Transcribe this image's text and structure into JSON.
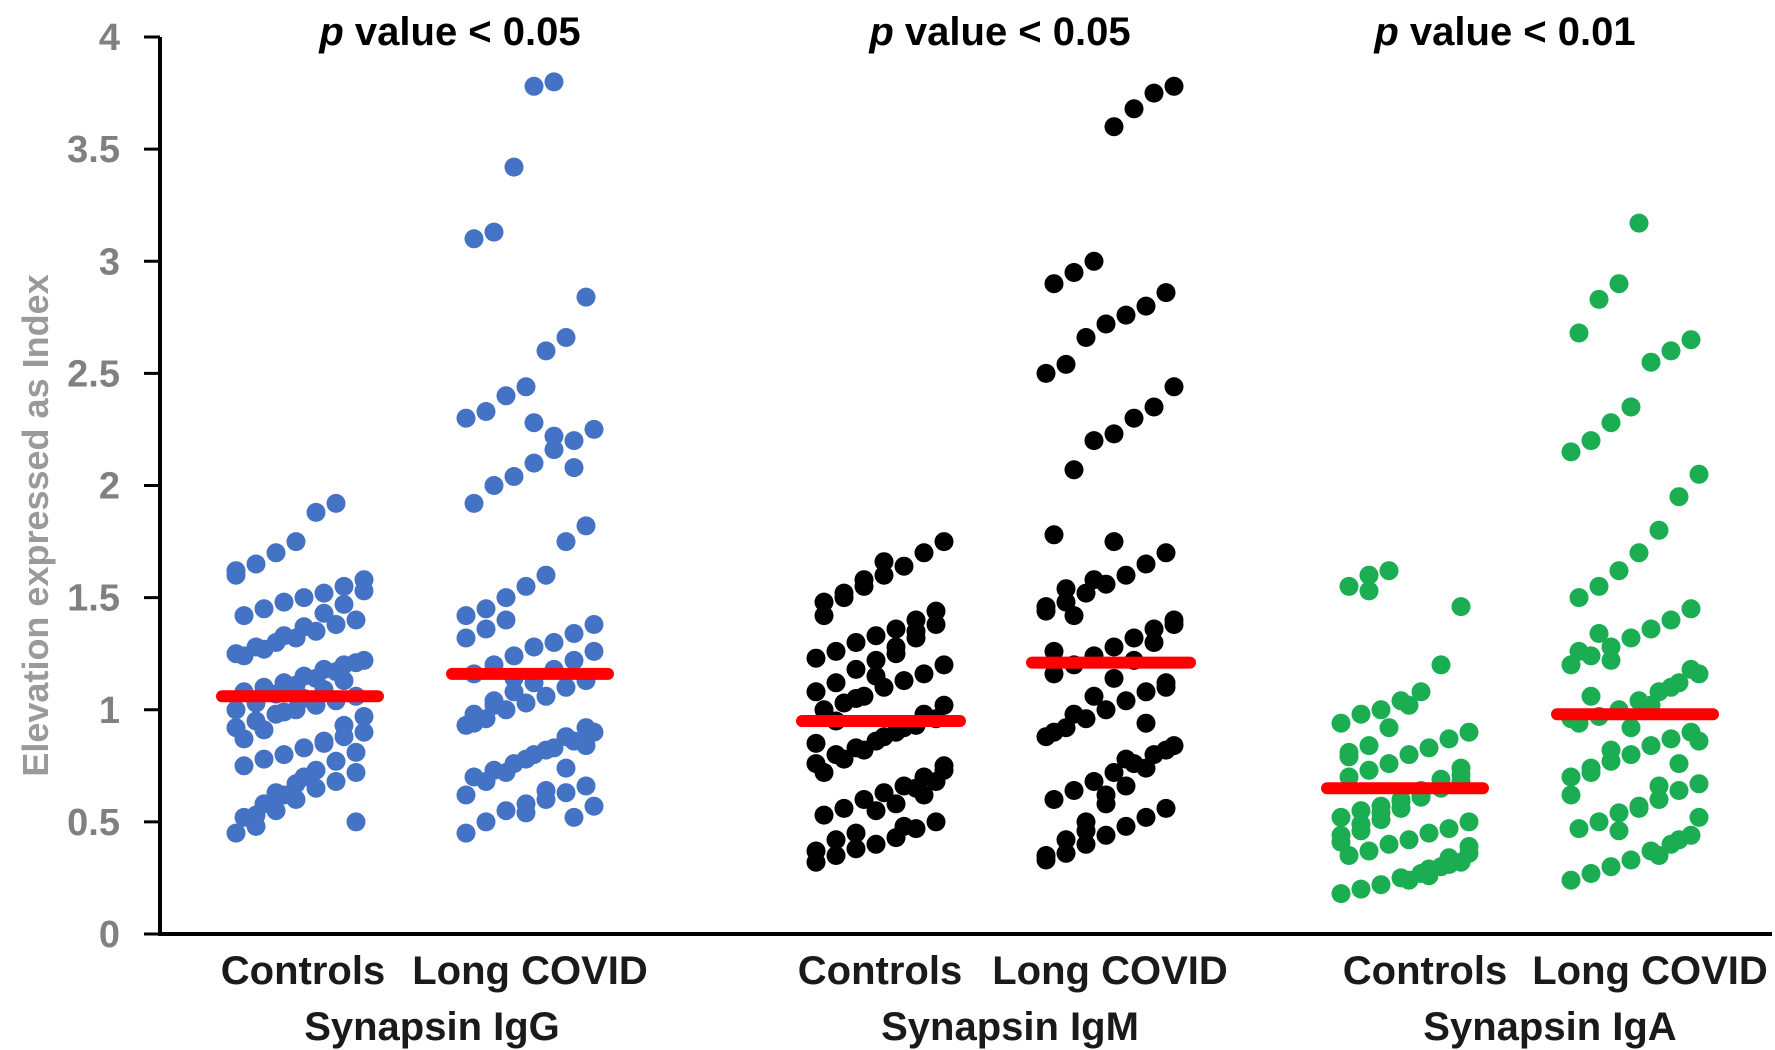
{
  "chart_data": {
    "type": "scatter",
    "subtype": "dot-strip",
    "ylabel": "Elevation expressed as Index",
    "ylim": [
      0,
      4
    ],
    "yticks": [
      0,
      0.5,
      1,
      1.5,
      2,
      2.5,
      3,
      3.5,
      4
    ],
    "ytick_labels": [
      "0",
      "0.5",
      "1",
      "1.5",
      "2",
      "2.5",
      "3",
      "3.5",
      "4"
    ],
    "grid": false,
    "legend": "none",
    "mean_line_color": "#ff0000",
    "groups": [
      {
        "name": "Synapsin IgG",
        "p_italic": "p",
        "p_text": " value < 0.05",
        "color": "#4472c4",
        "categories": [
          {
            "label": "Controls",
            "mean": 1.06,
            "values": [
              0.45,
              0.48,
              0.55,
              0.6,
              0.65,
              0.68,
              0.72,
              0.75,
              0.78,
              0.8,
              0.83,
              0.86,
              0.88,
              0.9,
              0.92,
              0.95,
              0.98,
              1.0,
              1.02,
              1.04,
              1.06,
              1.08,
              1.1,
              1.12,
              1.15,
              1.18,
              1.2,
              1.22,
              1.25,
              1.28,
              1.3,
              1.32,
              1.35,
              1.38,
              1.4,
              1.42,
              1.45,
              1.48,
              1.5,
              1.52,
              1.55,
              1.58,
              1.62,
              1.65,
              1.7,
              1.75,
              1.88,
              1.92,
              0.5,
              0.52,
              0.58,
              0.62,
              0.7,
              0.85,
              0.93,
              0.97,
              1.0,
              1.03,
              1.07,
              1.11,
              1.14,
              1.17,
              1.21,
              1.24,
              1.27,
              1.33,
              1.37,
              1.43,
              1.47,
              1.53,
              1.6,
              0.53,
              0.63,
              0.67,
              0.73,
              0.77,
              0.81,
              0.87,
              0.91,
              0.99,
              1.05,
              1.09,
              1.13
            ]
          },
          {
            "label": "Long COVID",
            "mean": 1.16,
            "values": [
              0.45,
              0.5,
              0.55,
              0.58,
              0.6,
              0.63,
              0.66,
              0.7,
              0.73,
              0.76,
              0.8,
              0.83,
              0.86,
              0.9,
              0.93,
              0.96,
              1.0,
              1.03,
              1.06,
              1.1,
              1.13,
              1.16,
              1.2,
              1.24,
              1.28,
              1.3,
              1.34,
              1.38,
              1.42,
              1.45,
              1.5,
              1.55,
              1.6,
              1.75,
              1.82,
              1.92,
              2.0,
              2.04,
              2.1,
              2.16,
              2.2,
              2.25,
              2.3,
              2.33,
              2.4,
              2.44,
              2.6,
              2.66,
              2.84,
              3.1,
              3.13,
              3.42,
              3.78,
              3.8,
              0.52,
              0.57,
              0.62,
              0.68,
              0.72,
              0.78,
              0.82,
              0.88,
              0.92,
              0.98,
              1.02,
              1.08,
              1.12,
              1.18,
              1.22,
              1.26,
              1.32,
              1.36,
              1.4,
              0.54,
              0.64,
              0.74,
              0.84,
              0.94,
              1.04,
              1.14,
              2.28,
              2.22,
              2.08
            ]
          }
        ]
      },
      {
        "name": "Synapsin IgM",
        "p_italic": "p",
        "p_text": " value < 0.05",
        "color": "#000000",
        "categories": [
          {
            "label": "Controls",
            "mean": 0.95,
            "values": [
              0.32,
              0.35,
              0.38,
              0.4,
              0.43,
              0.47,
              0.5,
              0.53,
              0.56,
              0.6,
              0.63,
              0.66,
              0.7,
              0.73,
              0.76,
              0.8,
              0.83,
              0.86,
              0.9,
              0.93,
              0.96,
              1.0,
              1.03,
              1.06,
              1.1,
              1.13,
              1.16,
              1.2,
              1.23,
              1.26,
              1.3,
              1.33,
              1.36,
              1.4,
              1.44,
              1.48,
              1.52,
              1.55,
              1.6,
              1.64,
              1.7,
              1.75,
              0.37,
              0.42,
              0.45,
              0.55,
              0.58,
              0.65,
              0.68,
              0.72,
              0.78,
              0.82,
              0.88,
              0.92,
              0.98,
              1.02,
              1.08,
              1.12,
              1.18,
              1.22,
              1.28,
              1.32,
              1.38,
              1.42,
              1.5,
              1.58,
              1.66,
              0.48,
              0.62,
              0.75,
              0.85,
              0.95,
              1.05,
              1.15,
              1.25,
              1.35
            ]
          },
          {
            "label": "Long COVID",
            "mean": 1.21,
            "values": [
              0.33,
              0.36,
              0.4,
              0.44,
              0.48,
              0.52,
              0.56,
              0.6,
              0.64,
              0.68,
              0.72,
              0.76,
              0.8,
              0.84,
              0.88,
              0.92,
              0.96,
              1.0,
              1.04,
              1.08,
              1.12,
              1.16,
              1.2,
              1.24,
              1.28,
              1.32,
              1.36,
              1.4,
              1.44,
              1.48,
              1.52,
              1.56,
              1.6,
              1.65,
              1.7,
              1.78,
              2.07,
              2.2,
              2.23,
              2.3,
              2.35,
              2.44,
              2.5,
              2.54,
              2.66,
              2.72,
              2.76,
              2.8,
              2.86,
              2.9,
              2.95,
              3.0,
              3.6,
              3.68,
              3.75,
              3.78,
              0.35,
              0.42,
              0.5,
              0.58,
              0.66,
              0.74,
              0.82,
              0.9,
              0.98,
              1.06,
              1.14,
              1.22,
              1.3,
              1.38,
              1.46,
              1.54,
              0.46,
              0.62,
              0.78,
              0.94,
              1.1,
              1.26,
              1.42,
              1.58,
              1.75
            ]
          }
        ]
      },
      {
        "name": "Synapsin IgA",
        "p_italic": "p",
        "p_text": " value < 0.01",
        "color": "#1aad52",
        "categories": [
          {
            "label": "Controls",
            "mean": 0.65,
            "values": [
              0.18,
              0.2,
              0.22,
              0.25,
              0.27,
              0.3,
              0.32,
              0.35,
              0.37,
              0.4,
              0.42,
              0.45,
              0.47,
              0.5,
              0.52,
              0.55,
              0.57,
              0.6,
              0.62,
              0.65,
              0.68,
              0.7,
              0.73,
              0.76,
              0.8,
              0.83,
              0.87,
              0.9,
              0.94,
              0.98,
              1.0,
              1.04,
              1.08,
              1.2,
              1.46,
              1.55,
              1.6,
              1.62,
              0.24,
              0.29,
              0.34,
              0.39,
              0.44,
              0.49,
              0.54,
              0.59,
              0.64,
              0.69,
              0.74,
              0.79,
              0.84,
              0.92,
              1.02,
              0.26,
              0.31,
              0.36,
              0.41,
              0.46,
              0.51,
              0.56,
              0.61,
              0.66,
              0.71,
              0.81,
              1.53
            ]
          },
          {
            "label": "Long COVID",
            "mean": 0.98,
            "values": [
              0.24,
              0.27,
              0.3,
              0.33,
              0.37,
              0.4,
              0.44,
              0.47,
              0.5,
              0.54,
              0.57,
              0.6,
              0.64,
              0.67,
              0.7,
              0.74,
              0.77,
              0.8,
              0.84,
              0.87,
              0.9,
              0.94,
              0.97,
              1.0,
              1.04,
              1.08,
              1.12,
              1.16,
              1.2,
              1.24,
              1.28,
              1.32,
              1.36,
              1.4,
              1.45,
              1.5,
              1.55,
              1.62,
              1.7,
              1.8,
              1.95,
              2.05,
              2.15,
              2.2,
              2.28,
              2.35,
              2.55,
              2.6,
              2.65,
              2.68,
              2.83,
              2.9,
              3.17,
              0.35,
              0.42,
              0.52,
              0.62,
              0.72,
              0.82,
              0.92,
              1.02,
              1.1,
              1.18,
              1.26,
              1.34,
              0.46,
              0.56,
              0.66,
              0.76,
              0.86,
              0.96,
              1.06,
              1.22
            ]
          }
        ]
      }
    ]
  }
}
